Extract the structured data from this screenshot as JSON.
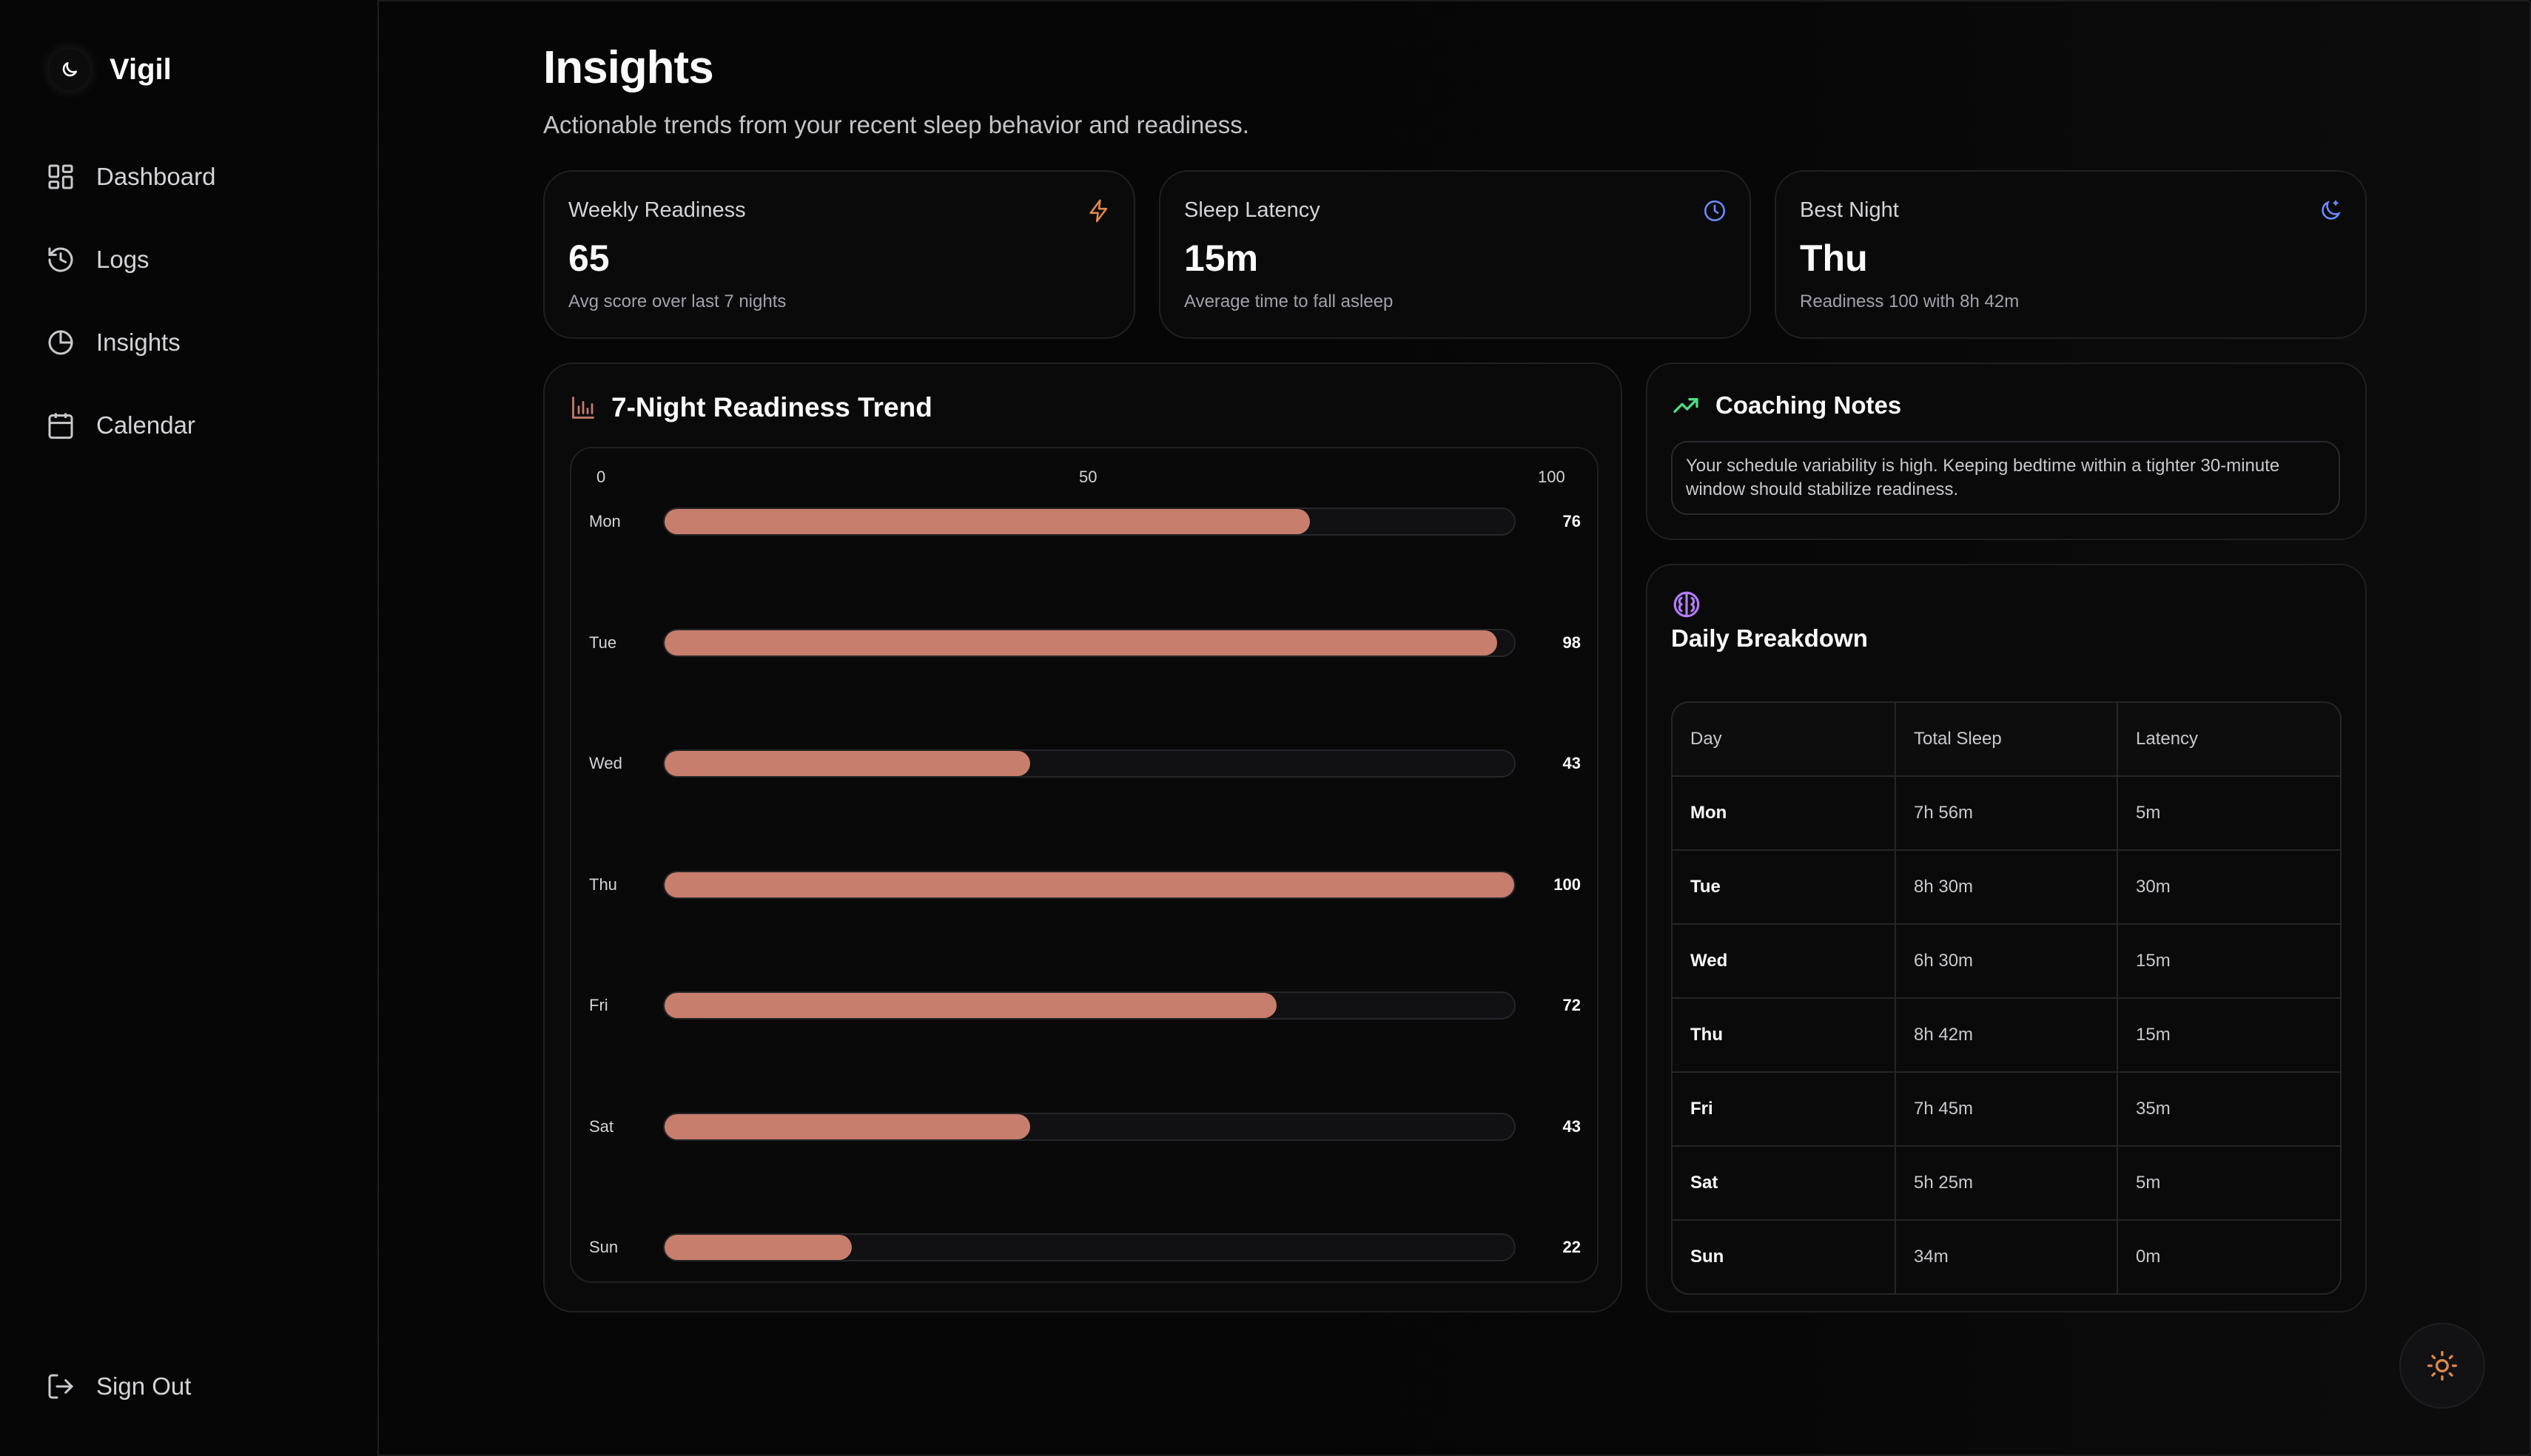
{
  "app": {
    "name": "Vigil"
  },
  "sidebar": {
    "items": [
      {
        "label": "Dashboard",
        "icon": "dashboard-icon"
      },
      {
        "label": "Logs",
        "icon": "history-icon"
      },
      {
        "label": "Insights",
        "icon": "pie-chart-icon"
      },
      {
        "label": "Calendar",
        "icon": "calendar-icon"
      }
    ],
    "sign_out": "Sign Out"
  },
  "header": {
    "title": "Insights",
    "subtitle": "Actionable trends from your recent sleep behavior and readiness."
  },
  "stats": [
    {
      "label": "Weekly Readiness",
      "value": "65",
      "desc": "Avg score over last 7 nights",
      "icon": "bolt-icon",
      "color": "#e08a4a"
    },
    {
      "label": "Sleep Latency",
      "value": "15m",
      "desc": "Average time to fall asleep",
      "icon": "clock-icon",
      "color": "#6d8cff"
    },
    {
      "label": "Best Night",
      "value": "Thu",
      "desc": "Readiness 100 with 8h 42m",
      "icon": "moon-icon",
      "color": "#6d8cff"
    }
  ],
  "trend": {
    "title": "7-Night Readiness Trend",
    "icon": "bar-chart-icon"
  },
  "chart_data": {
    "type": "bar",
    "orientation": "horizontal",
    "title": "7-Night Readiness Trend",
    "categories": [
      "Mon",
      "Tue",
      "Wed",
      "Thu",
      "Fri",
      "Sat",
      "Sun"
    ],
    "values": [
      76,
      98,
      43,
      100,
      72,
      43,
      22
    ],
    "xlim": [
      0,
      100
    ],
    "ticks": [
      "0",
      "50",
      "100"
    ],
    "bar_color": "#c87e6c"
  },
  "coaching": {
    "title": "Coaching Notes",
    "icon": "trending-up-icon",
    "note": "Your schedule variability is high. Keeping bedtime within a tighter 30-minute window should stabilize readiness."
  },
  "daily": {
    "title": "Daily Breakdown",
    "icon": "brain-icon",
    "headers": [
      "Day",
      "Total Sleep",
      "Latency"
    ],
    "rows": [
      [
        "Mon",
        "7h 56m",
        "5m"
      ],
      [
        "Tue",
        "8h 30m",
        "30m"
      ],
      [
        "Wed",
        "6h 30m",
        "15m"
      ],
      [
        "Thu",
        "8h 42m",
        "15m"
      ],
      [
        "Fri",
        "7h 45m",
        "35m"
      ],
      [
        "Sat",
        "5h 25m",
        "5m"
      ],
      [
        "Sun",
        "34m",
        "0m"
      ]
    ]
  },
  "theme_toggle": {
    "icon": "sun-icon",
    "color": "#e08a4a"
  }
}
